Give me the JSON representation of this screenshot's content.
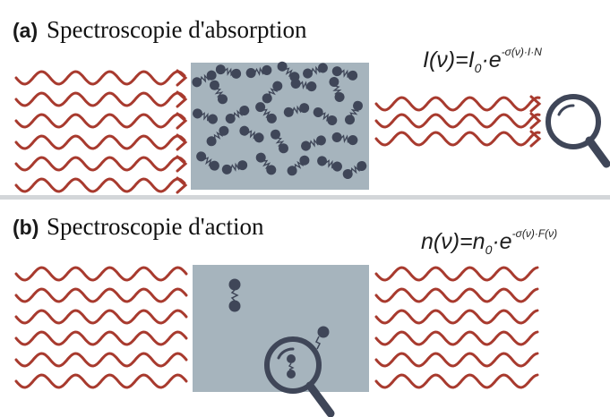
{
  "panel_a": {
    "letter": "(a)",
    "title": "Spectroscopie d'absorption",
    "formula": {
      "lhs": "I(ν)=I",
      "sub": "0",
      "dot": "·e",
      "exp": "-σ(ν)·I·N"
    }
  },
  "panel_b": {
    "letter": "(b)",
    "title": "Spectroscopie d'action",
    "formula": {
      "lhs": "n(ν)=n",
      "sub": "0",
      "dot": "·e",
      "exp": "-σ(ν)·F(ν)"
    }
  },
  "colors": {
    "wave": "#a83a2e",
    "box": "#a6b4bd",
    "molecule": "#3f4658",
    "divider": "#d3d6d9",
    "text": "#111111"
  },
  "icons": [
    "magnifier-icon",
    "molecule-icon",
    "light-wave-icon"
  ]
}
